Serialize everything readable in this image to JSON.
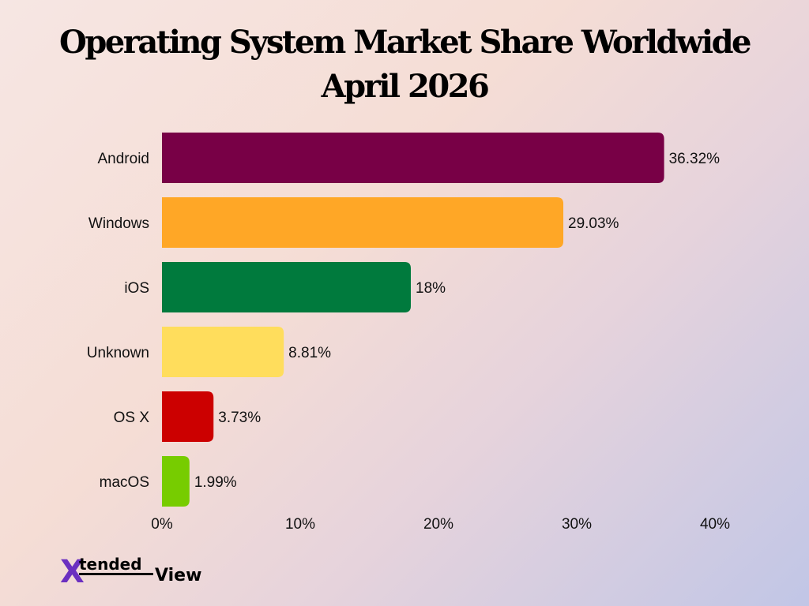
{
  "chart_data": {
    "type": "bar",
    "orientation": "horizontal",
    "title": "Operating System Market Share Worldwide",
    "subtitle": "April 2026",
    "categories": [
      "Android",
      "Windows",
      "iOS",
      "Unknown",
      "OS X",
      "macOS"
    ],
    "values": [
      36.32,
      29.03,
      18,
      8.81,
      3.73,
      1.99
    ],
    "value_labels": [
      "36.32%",
      "29.03%",
      "18%",
      "8.81%",
      "3.73%",
      "1.99%"
    ],
    "colors": [
      "#780046",
      "#FFA726",
      "#007A3D",
      "#FFDD5C",
      "#CC0000",
      "#77CC00"
    ],
    "x_ticks": [
      0,
      10,
      20,
      30,
      40
    ],
    "x_tick_labels": [
      "0%",
      "10%",
      "20%",
      "30%",
      "40%"
    ],
    "xlim": [
      0,
      40
    ],
    "grid": false,
    "legend": "none"
  },
  "logo": {
    "text_main": "tended",
    "text_accent": "View",
    "letter": "X"
  }
}
